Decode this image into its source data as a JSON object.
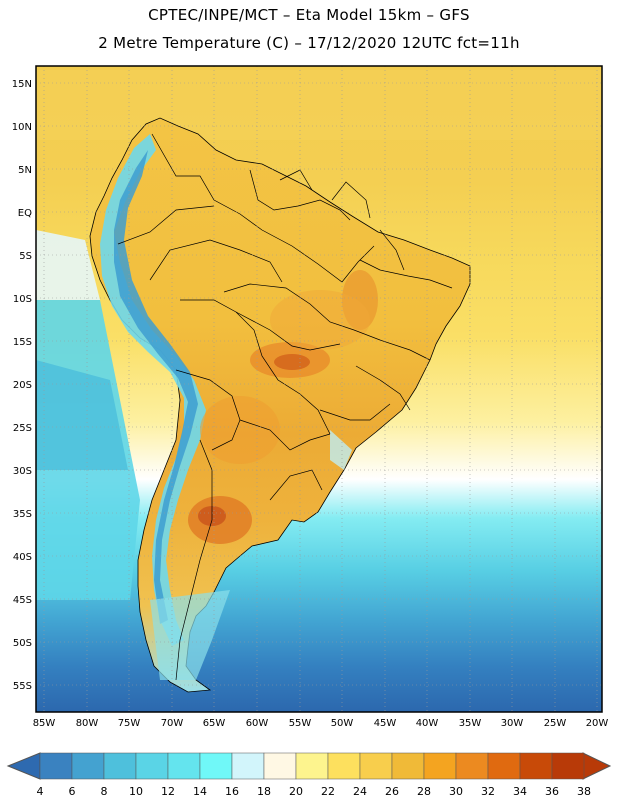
{
  "header": {
    "line1": "CPTEC/INPE/MCT –  Eta Model 15km – GFS",
    "line2": "2 Metre Temperature (C) – 17/12/2020 12UTC fct=11h"
  },
  "map": {
    "lat_labels": [
      "15N",
      "10N",
      "5N",
      "EQ",
      "5S",
      "10S",
      "15S",
      "20S",
      "25S",
      "30S",
      "35S",
      "40S",
      "45S",
      "50S",
      "55S"
    ],
    "lon_labels": [
      "85W",
      "80W",
      "75W",
      "70W",
      "65W",
      "60W",
      "55W",
      "50W",
      "45W",
      "40W",
      "35W",
      "30W",
      "25W",
      "20W"
    ]
  },
  "colorbar": {
    "labels": [
      "4",
      "6",
      "8",
      "10",
      "12",
      "14",
      "16",
      "18",
      "20",
      "22",
      "24",
      "26",
      "28",
      "30",
      "32",
      "34",
      "36",
      "38"
    ],
    "colors": [
      "#2e6ab0",
      "#3a82c0",
      "#44a2d0",
      "#4ec0dc",
      "#5ad4e6",
      "#64e4ee",
      "#70f8f8",
      "#d2f5fb",
      "#fff8e4",
      "#fdf48e",
      "#fde05e",
      "#f8ce4c",
      "#f0ba38",
      "#f4a420",
      "#ec8a20",
      "#e06a10",
      "#c84a08",
      "#b83a08"
    ]
  }
}
